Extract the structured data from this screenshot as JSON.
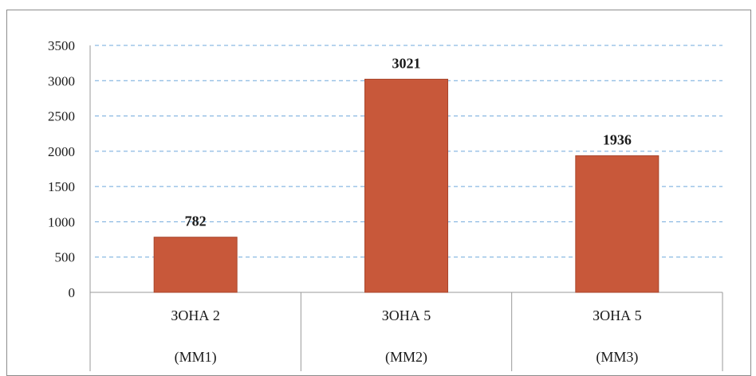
{
  "chart_data": {
    "type": "bar",
    "categories": [
      [
        "ЗОНА 2",
        "(ММ1)"
      ],
      [
        "ЗОНА 5",
        "(ММ2)"
      ],
      [
        "ЗОНА 5",
        "(ММ3)"
      ]
    ],
    "values": [
      782,
      3021,
      1936
    ],
    "data_labels": [
      "782",
      "3021",
      "1936"
    ],
    "y_ticks": [
      "0",
      "500",
      "1000",
      "1500",
      "2000",
      "2500",
      "3000",
      "3500"
    ],
    "ylim": [
      0,
      3500
    ],
    "title": "",
    "xlabel": "",
    "ylabel": "",
    "grid": true,
    "grid_style": "dashed",
    "legend": "none",
    "colors": {
      "bar": "#c8583a",
      "bar_edge": "#a8452b",
      "grid": "#6fa8dc",
      "axis": "#9a9a9a"
    }
  }
}
